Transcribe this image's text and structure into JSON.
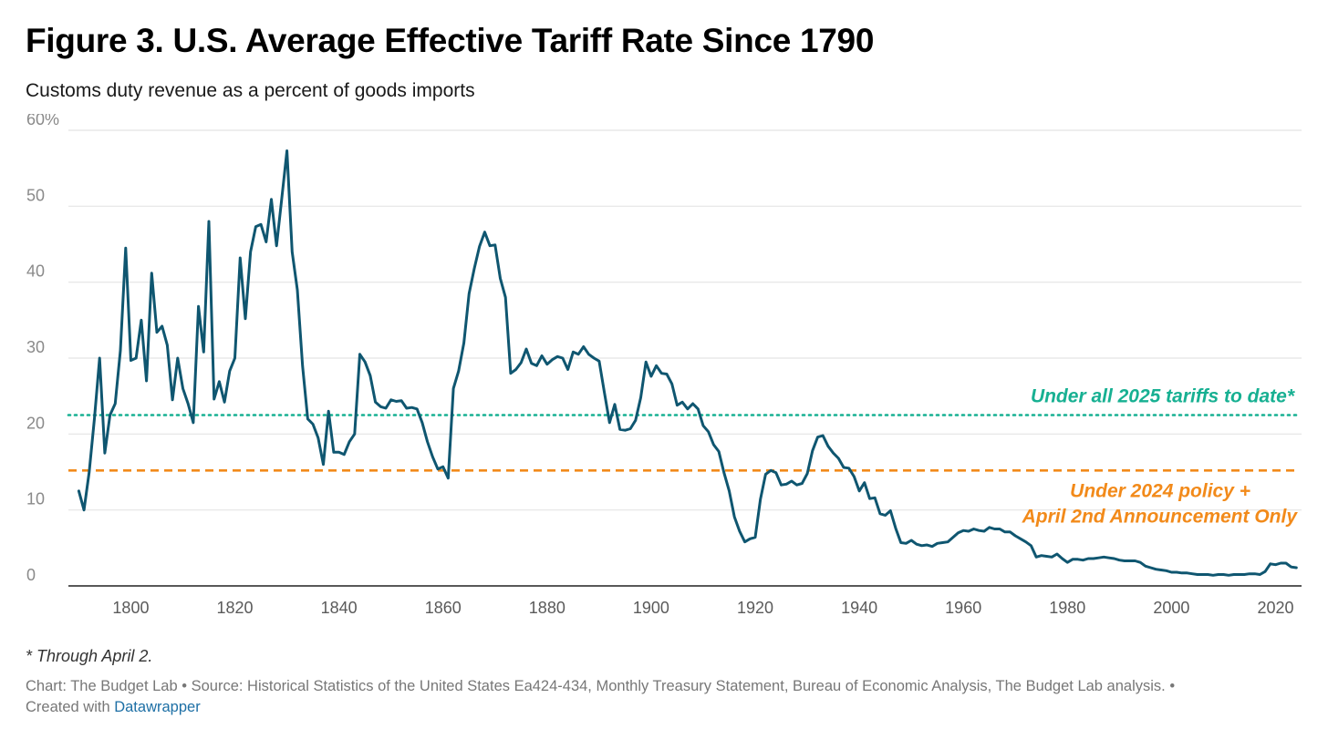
{
  "header": {
    "title": "Figure 3. U.S. Average Effective Tariff Rate Since 1790",
    "subtitle": "Customs duty revenue as a percent of goods imports"
  },
  "footer": {
    "footnote": "* Through April 2.",
    "source": "Chart: The Budget Lab • Source: Historical Statistics of the United States Ea424-434, Monthly Treasury Statement, Bureau of Economic Analysis, The Budget Lab analysis. •",
    "created_prefix": "Created with ",
    "created_link": "Datawrapper"
  },
  "colors": {
    "line": "#0f5670",
    "ref_2025": "#17b092",
    "ref_2024": "#f28a1a",
    "grid": "#e4e4e4",
    "axis": "#222222"
  },
  "chart_data": {
    "type": "line",
    "title": "Figure 3. U.S. Average Effective Tariff Rate Since 1790",
    "subtitle": "Customs duty revenue as a percent of goods imports",
    "xlabel": "",
    "ylabel": "",
    "xlim": [
      1788,
      2025
    ],
    "ylim": [
      0,
      60
    ],
    "y_ticks": [
      {
        "value": 0,
        "label": "0"
      },
      {
        "value": 10,
        "label": "10"
      },
      {
        "value": 20,
        "label": "20"
      },
      {
        "value": 30,
        "label": "30"
      },
      {
        "value": 40,
        "label": "40"
      },
      {
        "value": 50,
        "label": "50"
      },
      {
        "value": 60,
        "label": "60%"
      }
    ],
    "x_ticks": [
      {
        "value": 1800,
        "label": "1800"
      },
      {
        "value": 1820,
        "label": "1820"
      },
      {
        "value": 1840,
        "label": "1840"
      },
      {
        "value": 1860,
        "label": "1860"
      },
      {
        "value": 1880,
        "label": "1880"
      },
      {
        "value": 1900,
        "label": "1900"
      },
      {
        "value": 1920,
        "label": "1920"
      },
      {
        "value": 1940,
        "label": "1940"
      },
      {
        "value": 1960,
        "label": "1960"
      },
      {
        "value": 1980,
        "label": "1980"
      },
      {
        "value": 2000,
        "label": "2000"
      },
      {
        "value": 2020,
        "label": "2020"
      }
    ],
    "grid": true,
    "series": [
      {
        "color": "#0f5670",
        "points": [
          [
            1790,
            12.5
          ],
          [
            1791,
            10
          ],
          [
            1792,
            15
          ],
          [
            1793,
            22
          ],
          [
            1794,
            30
          ],
          [
            1795,
            17.5
          ],
          [
            1796,
            22.5
          ],
          [
            1797,
            24
          ],
          [
            1798,
            31
          ],
          [
            1799,
            44.5
          ],
          [
            1800,
            29.7
          ],
          [
            1801,
            30
          ],
          [
            1802,
            35
          ],
          [
            1803,
            27
          ],
          [
            1804,
            41.2
          ],
          [
            1805,
            33.4
          ],
          [
            1806,
            34.2
          ],
          [
            1807,
            31.7
          ],
          [
            1808,
            24.5
          ],
          [
            1809,
            30
          ],
          [
            1810,
            26
          ],
          [
            1811,
            24
          ],
          [
            1812,
            21.5
          ],
          [
            1813,
            36.8
          ],
          [
            1814,
            30.8
          ],
          [
            1815,
            48
          ],
          [
            1816,
            24.6
          ],
          [
            1817,
            26.9
          ],
          [
            1818,
            24.2
          ],
          [
            1819,
            28.3
          ],
          [
            1820,
            30
          ],
          [
            1821,
            43.2
          ],
          [
            1822,
            35.2
          ],
          [
            1823,
            44
          ],
          [
            1824,
            47.3
          ],
          [
            1825,
            47.6
          ],
          [
            1826,
            45.3
          ],
          [
            1827,
            50.9
          ],
          [
            1828,
            44.8
          ],
          [
            1829,
            51
          ],
          [
            1830,
            57.3
          ],
          [
            1831,
            44
          ],
          [
            1832,
            39
          ],
          [
            1833,
            29
          ],
          [
            1834,
            22
          ],
          [
            1835,
            21.3
          ],
          [
            1836,
            19.5
          ],
          [
            1837,
            16
          ],
          [
            1838,
            23
          ],
          [
            1839,
            17.6
          ],
          [
            1840,
            17.6
          ],
          [
            1841,
            17.3
          ],
          [
            1842,
            19
          ],
          [
            1843,
            20
          ],
          [
            1844,
            30.5
          ],
          [
            1845,
            29.5
          ],
          [
            1846,
            27.7
          ],
          [
            1847,
            24.2
          ],
          [
            1848,
            23.6
          ],
          [
            1849,
            23.4
          ],
          [
            1850,
            24.5
          ],
          [
            1851,
            24.3
          ],
          [
            1852,
            24.4
          ],
          [
            1853,
            23.4
          ],
          [
            1854,
            23.5
          ],
          [
            1855,
            23.3
          ],
          [
            1856,
            21.5
          ],
          [
            1857,
            19
          ],
          [
            1858,
            17
          ],
          [
            1859,
            15.4
          ],
          [
            1860,
            15.7
          ],
          [
            1861,
            14.2
          ],
          [
            1862,
            26
          ],
          [
            1863,
            28.3
          ],
          [
            1864,
            32
          ],
          [
            1865,
            38.5
          ],
          [
            1866,
            41.8
          ],
          [
            1867,
            44.7
          ],
          [
            1868,
            46.6
          ],
          [
            1869,
            44.8
          ],
          [
            1870,
            44.9
          ],
          [
            1871,
            40.5
          ],
          [
            1872,
            38
          ],
          [
            1873,
            28
          ],
          [
            1874,
            28.5
          ],
          [
            1875,
            29.4
          ],
          [
            1876,
            31.2
          ],
          [
            1877,
            29.3
          ],
          [
            1878,
            29
          ],
          [
            1879,
            30.3
          ],
          [
            1880,
            29.2
          ],
          [
            1881,
            29.8
          ],
          [
            1882,
            30.2
          ],
          [
            1883,
            30
          ],
          [
            1884,
            28.5
          ],
          [
            1885,
            30.8
          ],
          [
            1886,
            30.5
          ],
          [
            1887,
            31.5
          ],
          [
            1888,
            30.5
          ],
          [
            1889,
            30
          ],
          [
            1890,
            29.6
          ],
          [
            1891,
            25.5
          ],
          [
            1892,
            21.5
          ],
          [
            1893,
            23.9
          ],
          [
            1894,
            20.6
          ],
          [
            1895,
            20.5
          ],
          [
            1896,
            20.7
          ],
          [
            1897,
            21.8
          ],
          [
            1898,
            24.8
          ],
          [
            1899,
            29.5
          ],
          [
            1900,
            27.6
          ],
          [
            1901,
            29
          ],
          [
            1902,
            28
          ],
          [
            1903,
            27.9
          ],
          [
            1904,
            26.6
          ],
          [
            1905,
            23.8
          ],
          [
            1906,
            24.2
          ],
          [
            1907,
            23.3
          ],
          [
            1908,
            24
          ],
          [
            1909,
            23.3
          ],
          [
            1910,
            21.1
          ],
          [
            1911,
            20.3
          ],
          [
            1912,
            18.6
          ],
          [
            1913,
            17.7
          ],
          [
            1914,
            14.9
          ],
          [
            1915,
            12.5
          ],
          [
            1916,
            9.1
          ],
          [
            1917,
            7.2
          ],
          [
            1918,
            5.8
          ],
          [
            1919,
            6.2
          ],
          [
            1920,
            6.4
          ],
          [
            1921,
            11.4
          ],
          [
            1922,
            14.7
          ],
          [
            1923,
            15.2
          ],
          [
            1924,
            14.9
          ],
          [
            1925,
            13.3
          ],
          [
            1926,
            13.4
          ],
          [
            1927,
            13.8
          ],
          [
            1928,
            13.3
          ],
          [
            1929,
            13.5
          ],
          [
            1930,
            14.8
          ],
          [
            1931,
            17.8
          ],
          [
            1932,
            19.6
          ],
          [
            1933,
            19.8
          ],
          [
            1934,
            18.4
          ],
          [
            1935,
            17.5
          ],
          [
            1936,
            16.8
          ],
          [
            1937,
            15.6
          ],
          [
            1938,
            15.5
          ],
          [
            1939,
            14.4
          ],
          [
            1940,
            12.5
          ],
          [
            1941,
            13.6
          ],
          [
            1942,
            11.5
          ],
          [
            1943,
            11.6
          ],
          [
            1944,
            9.5
          ],
          [
            1945,
            9.3
          ],
          [
            1946,
            9.9
          ],
          [
            1947,
            7.6
          ],
          [
            1948,
            5.7
          ],
          [
            1949,
            5.6
          ],
          [
            1950,
            6
          ],
          [
            1951,
            5.5
          ],
          [
            1952,
            5.3
          ],
          [
            1953,
            5.4
          ],
          [
            1954,
            5.2
          ],
          [
            1955,
            5.6
          ],
          [
            1956,
            5.7
          ],
          [
            1957,
            5.8
          ],
          [
            1958,
            6.4
          ],
          [
            1959,
            7
          ],
          [
            1960,
            7.3
          ],
          [
            1961,
            7.2
          ],
          [
            1962,
            7.5
          ],
          [
            1963,
            7.3
          ],
          [
            1964,
            7.2
          ],
          [
            1965,
            7.7
          ],
          [
            1966,
            7.5
          ],
          [
            1967,
            7.5
          ],
          [
            1968,
            7.1
          ],
          [
            1969,
            7.1
          ],
          [
            1970,
            6.6
          ],
          [
            1971,
            6.2
          ],
          [
            1972,
            5.8
          ],
          [
            1973,
            5.3
          ],
          [
            1974,
            3.8
          ],
          [
            1975,
            4
          ],
          [
            1976,
            3.9
          ],
          [
            1977,
            3.8
          ],
          [
            1978,
            4.2
          ],
          [
            1979,
            3.6
          ],
          [
            1980,
            3.1
          ],
          [
            1981,
            3.5
          ],
          [
            1982,
            3.5
          ],
          [
            1983,
            3.4
          ],
          [
            1984,
            3.6
          ],
          [
            1985,
            3.6
          ],
          [
            1986,
            3.7
          ],
          [
            1987,
            3.8
          ],
          [
            1988,
            3.7
          ],
          [
            1989,
            3.6
          ],
          [
            1990,
            3.4
          ],
          [
            1991,
            3.3
          ],
          [
            1992,
            3.3
          ],
          [
            1993,
            3.3
          ],
          [
            1994,
            3.1
          ],
          [
            1995,
            2.6
          ],
          [
            1996,
            2.4
          ],
          [
            1997,
            2.2
          ],
          [
            1998,
            2.1
          ],
          [
            1999,
            2
          ],
          [
            2000,
            1.8
          ],
          [
            2001,
            1.8
          ],
          [
            2002,
            1.7
          ],
          [
            2003,
            1.7
          ],
          [
            2004,
            1.6
          ],
          [
            2005,
            1.5
          ],
          [
            2006,
            1.5
          ],
          [
            2007,
            1.5
          ],
          [
            2008,
            1.4
          ],
          [
            2009,
            1.5
          ],
          [
            2010,
            1.5
          ],
          [
            2011,
            1.4
          ],
          [
            2012,
            1.5
          ],
          [
            2013,
            1.5
          ],
          [
            2014,
            1.5
          ],
          [
            2015,
            1.6
          ],
          [
            2016,
            1.6
          ],
          [
            2017,
            1.5
          ],
          [
            2018,
            1.9
          ],
          [
            2019,
            2.9
          ],
          [
            2020,
            2.8
          ],
          [
            2021,
            3
          ],
          [
            2022,
            3
          ],
          [
            2023,
            2.5
          ],
          [
            2024,
            2.4
          ]
        ]
      }
    ],
    "reference_lines": [
      {
        "value": 22.5,
        "label": "Under all 2025 tariffs to date*",
        "style": "dotted",
        "color": "#17b092"
      },
      {
        "value": 15.2,
        "label_lines": [
          "Under 2024 policy +",
          "April 2nd Announcement Only"
        ],
        "style": "dashed",
        "color": "#f28a1a"
      }
    ]
  }
}
